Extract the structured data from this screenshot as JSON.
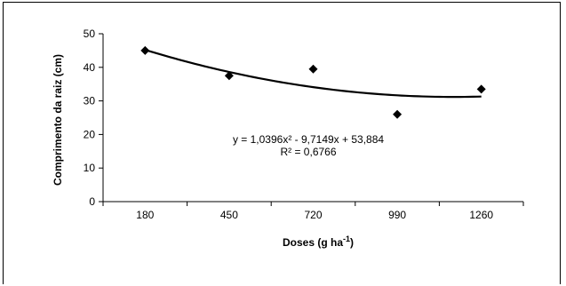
{
  "chart_data": {
    "type": "scatter",
    "title": "",
    "xlabel": "Doses (g  ha-1)",
    "xlabel_main": "Doses (g  ha",
    "xlabel_sup": "-1",
    "xlabel_tail": ")",
    "ylabel": "Comprimento da raiz (cm)",
    "x_categories": [
      "180",
      "450",
      "720",
      "990",
      "1260"
    ],
    "ylim": [
      0,
      50
    ],
    "y_ticks": [
      "0",
      "10",
      "20",
      "30",
      "40",
      "50"
    ],
    "series": [
      {
        "values": [
          45,
          37.5,
          39.5,
          26,
          33.5
        ]
      }
    ],
    "trendline": {
      "type": "polynomial",
      "order": 2,
      "coefficients": {
        "a": 1.0396,
        "b": -9.7149,
        "c": 53.884
      },
      "equation": "y = 1,0396x² - 9,7149x + 53,884",
      "r_squared": "R² = 0,6766"
    },
    "grid": false,
    "legend": "none",
    "marker": "diamond",
    "color": "#000000"
  }
}
